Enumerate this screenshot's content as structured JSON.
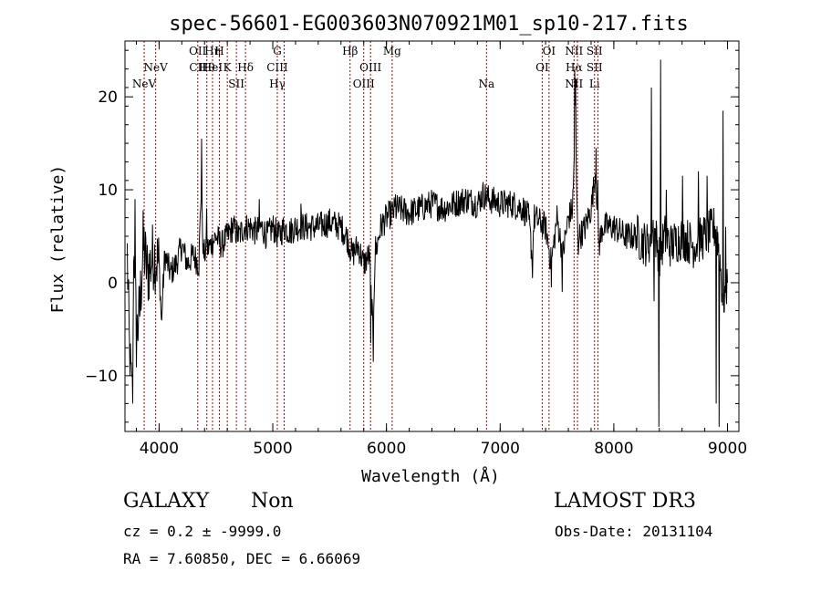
{
  "chart_data": {
    "type": "line",
    "title": "spec-56601-EG003603N070921M01_sp10-217.fits",
    "xlabel": "Wavelength (Å)",
    "ylabel": "Flux (relative)",
    "xlim": [
      3700,
      9100
    ],
    "ylim": [
      -16,
      26
    ],
    "xticks": [
      4000,
      5000,
      6000,
      7000,
      8000,
      9000
    ],
    "yticks": [
      -10,
      0,
      10,
      20
    ],
    "ytick_labels": [
      "−10",
      "0",
      "10",
      "20"
    ],
    "grid": false,
    "line_color": "#000000",
    "marker_color": "#b00000",
    "spectrum_anchors": [
      [
        3720,
        3
      ],
      [
        3740,
        -8
      ],
      [
        3760,
        -12
      ],
      [
        3780,
        5
      ],
      [
        3800,
        -6
      ],
      [
        3830,
        -3
      ],
      [
        3860,
        4
      ],
      [
        3900,
        1
      ],
      [
        3950,
        3
      ],
      [
        4000,
        2
      ],
      [
        4020,
        -4
      ],
      [
        4050,
        3
      ],
      [
        4100,
        1
      ],
      [
        4150,
        2
      ],
      [
        4200,
        4
      ],
      [
        4250,
        2
      ],
      [
        4300,
        3
      ],
      [
        4350,
        2
      ],
      [
        4370,
        10
      ],
      [
        4390,
        3
      ],
      [
        4450,
        4
      ],
      [
        4500,
        5
      ],
      [
        4550,
        4
      ],
      [
        4600,
        5
      ],
      [
        4650,
        6
      ],
      [
        4700,
        5
      ],
      [
        4750,
        6
      ],
      [
        4800,
        6
      ],
      [
        4850,
        5.5
      ],
      [
        4900,
        6
      ],
      [
        4950,
        5
      ],
      [
        5000,
        6
      ],
      [
        5050,
        5
      ],
      [
        5100,
        6
      ],
      [
        5150,
        5.5
      ],
      [
        5200,
        6
      ],
      [
        5300,
        6
      ],
      [
        5400,
        6
      ],
      [
        5500,
        6.5
      ],
      [
        5600,
        6
      ],
      [
        5650,
        5
      ],
      [
        5700,
        3
      ],
      [
        5750,
        4
      ],
      [
        5800,
        2
      ],
      [
        5850,
        3
      ],
      [
        5880,
        -5
      ],
      [
        5900,
        3
      ],
      [
        5950,
        6
      ],
      [
        6000,
        7
      ],
      [
        6100,
        8
      ],
      [
        6200,
        7.5
      ],
      [
        6300,
        8
      ],
      [
        6400,
        8.5
      ],
      [
        6500,
        8
      ],
      [
        6600,
        8.5
      ],
      [
        6700,
        9
      ],
      [
        6800,
        8.5
      ],
      [
        6850,
        9.5
      ],
      [
        6900,
        9
      ],
      [
        7000,
        8.5
      ],
      [
        7100,
        8.5
      ],
      [
        7200,
        8
      ],
      [
        7250,
        7
      ],
      [
        7280,
        3
      ],
      [
        7300,
        7
      ],
      [
        7400,
        6
      ],
      [
        7450,
        2
      ],
      [
        7500,
        7
      ],
      [
        7550,
        3
      ],
      [
        7600,
        7
      ],
      [
        7640,
        8
      ],
      [
        7660,
        18
      ],
      [
        7680,
        6
      ],
      [
        7700,
        5
      ],
      [
        7750,
        6
      ],
      [
        7800,
        8
      ],
      [
        7840,
        12
      ],
      [
        7870,
        4
      ],
      [
        7900,
        6
      ],
      [
        8000,
        6
      ],
      [
        8100,
        5
      ],
      [
        8200,
        5
      ],
      [
        8300,
        4
      ],
      [
        8350,
        6
      ],
      [
        8400,
        3
      ],
      [
        8450,
        5
      ],
      [
        8500,
        4
      ],
      [
        8600,
        5
      ],
      [
        8700,
        4
      ],
      [
        8800,
        5
      ],
      [
        8900,
        6
      ],
      [
        8930,
        3
      ],
      [
        8960,
        -2
      ],
      [
        9000,
        0
      ]
    ],
    "spikes": [
      [
        3745,
        -10
      ],
      [
        3770,
        -13
      ],
      [
        3790,
        9
      ],
      [
        3820,
        -4
      ],
      [
        3870,
        6
      ],
      [
        4025,
        -4
      ],
      [
        4375,
        15.5
      ],
      [
        4420,
        8
      ],
      [
        4880,
        9
      ],
      [
        5250,
        8.5
      ],
      [
        5860,
        -6.5
      ],
      [
        5885,
        -8.5
      ],
      [
        5905,
        5
      ],
      [
        6080,
        9.5
      ],
      [
        7285,
        0.5
      ],
      [
        7450,
        -0.5
      ],
      [
        7545,
        -1
      ],
      [
        7640,
        10
      ],
      [
        7655,
        23
      ],
      [
        7665,
        22
      ],
      [
        7690,
        3
      ],
      [
        7843,
        14.5
      ],
      [
        7858,
        11
      ],
      [
        8330,
        21
      ],
      [
        8355,
        -2
      ],
      [
        8395,
        -15.5
      ],
      [
        8410,
        24
      ],
      [
        8460,
        10
      ],
      [
        8605,
        11.5
      ],
      [
        8745,
        12
      ],
      [
        8820,
        11.5
      ],
      [
        8900,
        -13
      ],
      [
        8925,
        -15.5
      ],
      [
        8960,
        18.5
      ],
      [
        8985,
        6
      ]
    ],
    "line_markers": [
      {
        "x": 3869,
        "labels": [
          "NeV"
        ],
        "row": 2
      },
      {
        "x": 3970,
        "labels": [
          "NeV"
        ],
        "row": 1
      },
      {
        "x": 4340,
        "labels": [
          "OII",
          "CII"
        ],
        "row": 0
      },
      {
        "x": 4420,
        "labels": [
          "Hθ"
        ],
        "row": 1
      },
      {
        "x": 4470,
        "labels": [
          "Hη",
          "HeI"
        ],
        "row": 0
      },
      {
        "x": 4530,
        "labels": [
          "H"
        ],
        "row": 0
      },
      {
        "x": 4600,
        "labels": [
          "K"
        ],
        "row": 1
      },
      {
        "x": 4680,
        "labels": [
          "SII"
        ],
        "row": 2
      },
      {
        "x": 4760,
        "labels": [
          "Hδ"
        ],
        "row": 1
      },
      {
        "x": 5040,
        "labels": [
          "G",
          "CIII",
          "Hγ"
        ],
        "row": 0
      },
      {
        "x": 5100,
        "labels": [],
        "row": 0
      },
      {
        "x": 5680,
        "labels": [
          "Hβ"
        ],
        "row": 0
      },
      {
        "x": 5800,
        "labels": [
          "OIII"
        ],
        "row": 2
      },
      {
        "x": 5860,
        "labels": [
          "OIII"
        ],
        "row": 1
      },
      {
        "x": 6050,
        "labels": [
          "Mg"
        ],
        "row": 0
      },
      {
        "x": 6880,
        "labels": [
          "Na"
        ],
        "row": 2
      },
      {
        "x": 7370,
        "labels": [
          "OI"
        ],
        "row": 1
      },
      {
        "x": 7430,
        "labels": [
          "OI"
        ],
        "row": 0
      },
      {
        "x": 7650,
        "labels": [
          "NII",
          "Hα",
          "NII"
        ],
        "row": 0
      },
      {
        "x": 7680,
        "labels": [],
        "row": 0
      },
      {
        "x": 7830,
        "labels": [
          "SII",
          "SII",
          "Li"
        ],
        "row": 0
      },
      {
        "x": 7860,
        "labels": [],
        "row": 0
      }
    ]
  },
  "info": {
    "object_class": "GALAXY",
    "subclass": "Non",
    "survey": "LAMOST DR3",
    "cz": "cz = 0.2 ± -9999.0",
    "obs_date": "Obs-Date: 20131104",
    "coords": "RA =   7.60850, DEC =   6.66069"
  }
}
